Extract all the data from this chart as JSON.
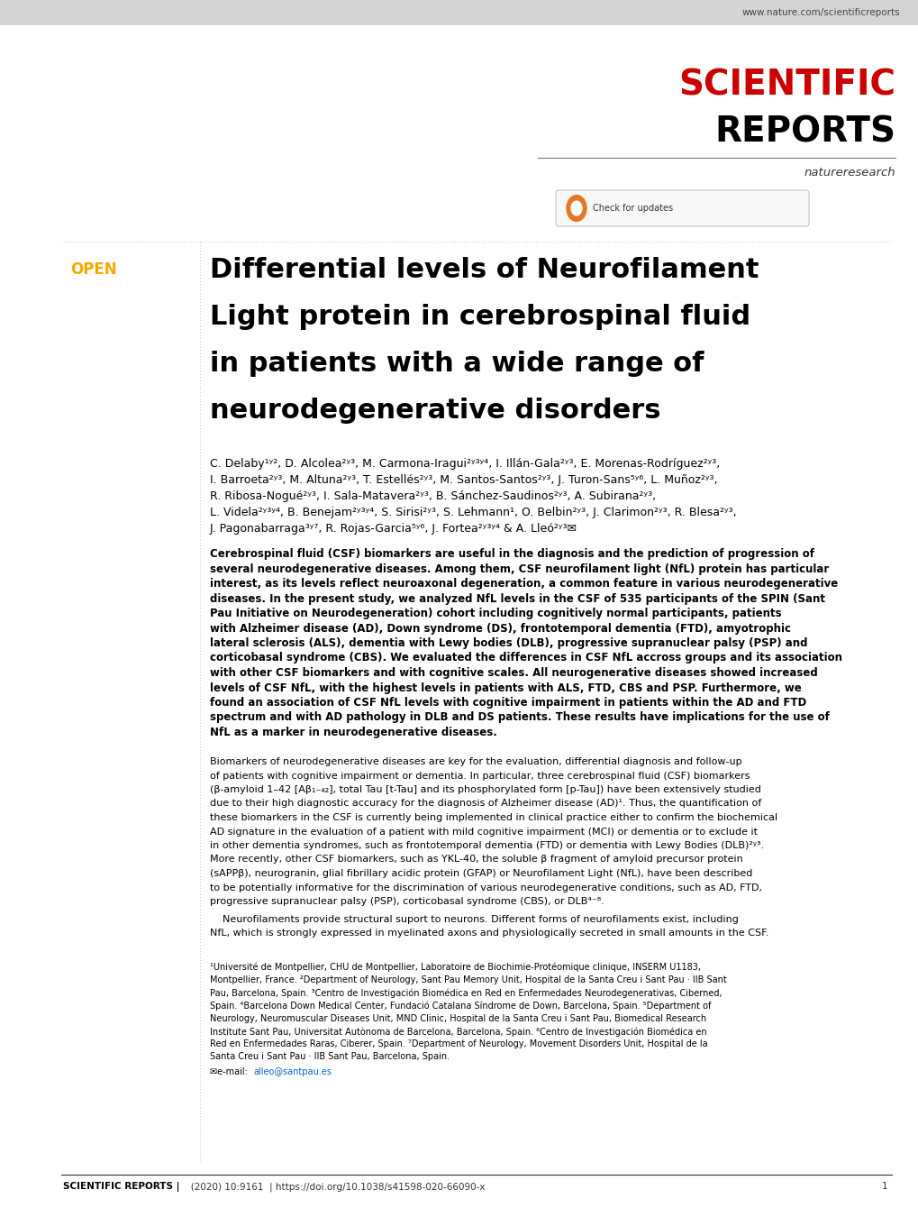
{
  "bg_color": "#ffffff",
  "header_bg": "#d4d4d4",
  "header_url": "www.nature.com/scientificreports",
  "scientific_red": "#cc0000",
  "scientific_black": "#000000",
  "open_orange": "#f5a800",
  "link_blue": "#0066cc",
  "journal_line1": "SCIENTIFIC",
  "journal_line2": "REPORTS",
  "nature_research": "natureresearch",
  "open_label": "OPEN",
  "paper_title_line1": "Differential levels of Neurofilament",
  "paper_title_line2": "Light protein in cerebrospinal fluid",
  "paper_title_line3": "in patients with a wide range of",
  "paper_title_line4": "neurodegenerative disorders",
  "authors_line1": "C. Delaby¹ʸ², D. Alcolea²ʸ³, M. Carmona-Iragui²ʸ³ʸ⁴, I. Illán-Gala²ʸ³, E. Morenas-Rodríguez²ʸ³,",
  "authors_line2": "I. Barroeta²ʸ³, M. Altuna²ʸ³, T. Estellés²ʸ³, M. Santos-Santos²ʸ³, J. Turon-Sans⁵ʸ⁶, L. Muñoz²ʸ³,",
  "authors_line3": "R. Ribosa-Nogué²ʸ³, I. Sala-Matavera²ʸ³, B. Sánchez-Saudinos²ʸ³, A. Subirana²ʸ³,",
  "authors_line4": "L. Videla²ʸ³ʸ⁴, B. Benejam²ʸ³ʸ⁴, S. Sirisi²ʸ³, S. Lehmann¹, O. Belbin²ʸ³, J. Clarimon²ʸ³, R. Blesa²ʸ³,",
  "authors_line5": "J. Pagonabarraga³ʸ⁷, R. Rojas-Garcia⁵ʸ⁶, J. Fortea²ʸ³ʸ⁴ & A. Lleó²ʸ³✉",
  "abstract_lines": [
    "Cerebrospinal fluid (CSF) biomarkers are useful in the diagnosis and the prediction of progression of",
    "several neurodegenerative diseases. Among them, CSF neurofilament light (NfL) protein has particular",
    "interest, as its levels reflect neuroaxonal degeneration, a common feature in various neurodegenerative",
    "diseases. In the present study, we analyzed NfL levels in the CSF of 535 participants of the SPIN (Sant",
    "Pau Initiative on Neurodegeneration) cohort including cognitively normal participants, patients",
    "with Alzheimer disease (AD), Down syndrome (DS), frontotemporal dementia (FTD), amyotrophic",
    "lateral sclerosis (ALS), dementia with Lewy bodies (DLB), progressive supranuclear palsy (PSP) and",
    "corticobasal syndrome (CBS). We evaluated the differences in CSF NfL accross groups and its association",
    "with other CSF biomarkers and with cognitive scales. All neurogenerative diseases showed increased",
    "levels of CSF NfL, with the highest levels in patients with ALS, FTD, CBS and PSP. Furthermore, we",
    "found an association of CSF NfL levels with cognitive impairment in patients within the AD and FTD",
    "spectrum and with AD pathology in DLB and DS patients. These results have implications for the use of",
    "NfL as a marker in neurodegenerative diseases."
  ],
  "intro_lines": [
    "Biomarkers of neurodegenerative diseases are key for the evaluation, differential diagnosis and follow-up",
    "of patients with cognitive impairment or dementia. In particular, three cerebrospinal fluid (CSF) biomarkers",
    "(β-amyloid 1–42 [Aβ₁₋₄₂], total Tau [t-Tau] and its phosphorylated form [p-Tau]) have been extensively studied",
    "due to their high diagnostic accuracy for the diagnosis of Alzheimer disease (AD)¹. Thus, the quantification of",
    "these biomarkers in the CSF is currently being implemented in clinical practice either to confirm the biochemical",
    "AD signature in the evaluation of a patient with mild cognitive impairment (MCI) or dementia or to exclude it",
    "in other dementia syndromes, such as frontotemporal dementia (FTD) or dementia with Lewy Bodies (DLB)²ʸ³.",
    "More recently, other CSF biomarkers, such as YKL-40, the soluble β fragment of amyloid precursor protein",
    "(sAPPβ), neurogranin, glial fibrillary acidic protein (GFAP) or Neurofilament Light (NfL), have been described",
    "to be potentially informative for the discrimination of various neurodegenerative conditions, such as AD, FTD,",
    "progressive supranuclear palsy (PSP), corticobasal syndrome (CBS), or DLB⁴⁻⁸."
  ],
  "intro2_lines": [
    "    Neurofilaments provide structural suport to neurons. Different forms of neurofilaments exist, including",
    "NfL, which is strongly expressed in myelinated axons and physiologically secreted in small amounts in the CSF."
  ],
  "affil_lines": [
    "¹Université de Montpellier, CHU de Montpellier, Laboratoire de Biochimie-Protéomique clinique, INSERM U1183,",
    "Montpellier, France. ²Department of Neurology, Sant Pau Memory Unit, Hospital de la Santa Creu i Sant Pau · IIB Sant",
    "Pau, Barcelona, Spain. ³Centro de Investigación Biomédica en Red en Enfermedades Neurodegenerativas, Ciberned,",
    "Spain. ⁴Barcelona Down Medical Center, Fundació Catalana Síndrome de Down, Barcelona, Spain. ⁵Department of",
    "Neurology, Neuromuscular Diseases Unit, MND Clinic, Hospital de la Santa Creu i Sant Pau, Biomedical Research",
    "Institute Sant Pau, Universitat Autònoma de Barcelona, Barcelona, Spain. ⁶Centro de Investigación Biomédica en",
    "Red en Enfermedades Raras, Ciberer, Spain. ⁷Department of Neurology, Movement Disorders Unit, Hospital de la",
    "Santa Creu i Sant Pau · IIB Sant Pau, Barcelona, Spain."
  ],
  "email_prefix": "✉e-mail: ",
  "email": "alleo@santpau.es",
  "footer_bold": "SCIENTIFIC REPORTS |",
  "footer_text": "   (2020) 10:9161  | https://doi.org/10.1038/s41598-020-66090-x",
  "footer_page": "1"
}
